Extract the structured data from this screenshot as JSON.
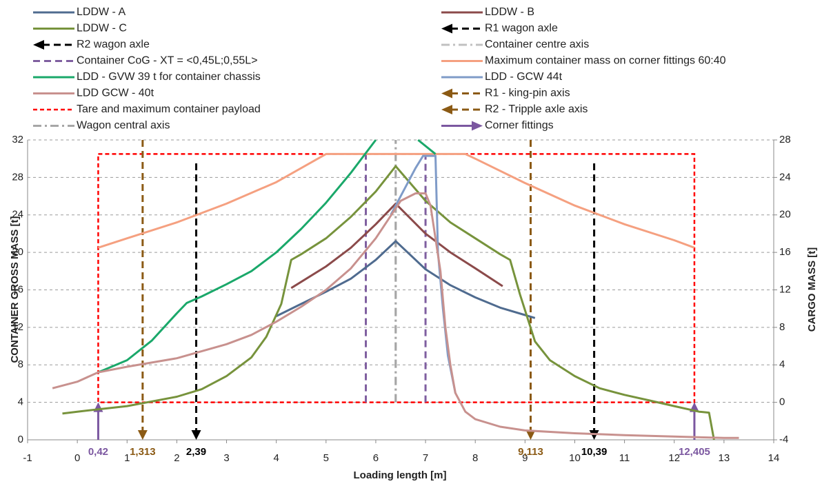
{
  "chart_data": {
    "type": "line",
    "x_label": "Loading length [m]",
    "y_label": "CONTAINER GROSS MASS [t]",
    "y2_label": "CARGO MASS [t]",
    "xlim": [
      -1,
      14
    ],
    "xticks": [
      -1,
      0,
      1,
      2,
      3,
      4,
      5,
      6,
      7,
      8,
      9,
      10,
      11,
      12,
      13,
      14
    ],
    "ylim": [
      0,
      32
    ],
    "yticks": [
      0,
      4,
      8,
      12,
      16,
      20,
      24,
      28,
      32
    ],
    "y2lim": [
      -4,
      28
    ],
    "y2ticks": [
      -4,
      0,
      4,
      8,
      12,
      16,
      20,
      24,
      28
    ],
    "grid": true,
    "series": [
      {
        "name": "LDDW - A",
        "color": "#4f6b8f",
        "style": "solid",
        "x": [
          4.0,
          4.5,
          5.0,
          5.5,
          6.0,
          6.4,
          7.0,
          7.5,
          8.0,
          8.5,
          9.2
        ],
        "values": [
          13.2,
          14.5,
          15.8,
          17.2,
          19.2,
          21.2,
          18.2,
          16.5,
          15.2,
          14.1,
          13.0
        ]
      },
      {
        "name": "LDDW - B",
        "color": "#8b4a4a",
        "style": "solid",
        "x": [
          4.3,
          5.0,
          5.5,
          6.0,
          6.4,
          7.0,
          7.5,
          8.0,
          8.55
        ],
        "values": [
          16.2,
          18.5,
          20.5,
          23.0,
          25.2,
          22.0,
          20.0,
          18.3,
          16.4
        ]
      },
      {
        "name": "LDDW - C",
        "color": "#77933c",
        "style": "solid",
        "x": [
          -0.3,
          0,
          0.5,
          1,
          1.5,
          2,
          2.5,
          3,
          3.5,
          3.8,
          4.1,
          4.3,
          4.5,
          5,
          5.5,
          6,
          6.4,
          7,
          7.5,
          8,
          8.5,
          8.7,
          8.9,
          9.2,
          9.5,
          10,
          10.5,
          11,
          11.5,
          12,
          12.5,
          12.7,
          12.8
        ],
        "values": [
          2.8,
          3.0,
          3.3,
          3.6,
          4.1,
          4.6,
          5.4,
          6.8,
          8.8,
          11.0,
          14.5,
          19.2,
          19.8,
          21.5,
          23.8,
          26.5,
          29.2,
          25.5,
          23.2,
          21.5,
          19.8,
          19.2,
          15.5,
          10.5,
          8.5,
          6.8,
          5.5,
          4.8,
          4.2,
          3.6,
          3.0,
          2.9,
          0
        ]
      },
      {
        "name": "R1 wagon axle",
        "color": "#000000",
        "style": "vline",
        "dash": "dash",
        "arrow": "end",
        "x": [
          10.39
        ],
        "x_labels": [
          "10,39"
        ],
        "from": 29.5,
        "to": 0
      },
      {
        "name": "R2 wagon axle",
        "color": "#000000",
        "style": "vline",
        "dash": "dash",
        "arrow": "end",
        "x": [
          2.39
        ],
        "x_labels": [
          "2,39"
        ],
        "from": 29.5,
        "to": 0
      },
      {
        "name": "Container centre axis",
        "color": "#c0c0c0",
        "style": "vline",
        "dash": "dashdot",
        "x": [
          6.4
        ],
        "from": 4,
        "to": 32
      },
      {
        "name": "Container CoG - XT = <0,45L;0,55L>",
        "color": "#7f5fa0",
        "style": "vline",
        "dash": "dash",
        "x": [
          5.8,
          7.0
        ],
        "from": 4,
        "to": 30.5
      },
      {
        "name": "Maximum container mass on corner fittings 60:40",
        "color": "#f5a080",
        "style": "solid",
        "x": [
          0.42,
          1,
          2,
          3,
          4,
          5,
          6,
          7,
          7.8,
          8,
          9,
          10,
          11,
          12,
          12.405
        ],
        "values": [
          20.5,
          21.5,
          23.2,
          25.2,
          27.5,
          30.5,
          30.5,
          30.5,
          30.5,
          30.0,
          27.4,
          25.0,
          23.0,
          21.3,
          20.5
        ]
      },
      {
        "name": "LDD - GVW 39 t for container chassis",
        "color": "#1aa86a",
        "style": "solid",
        "x": [
          0.42,
          1,
          1.5,
          2,
          2.2,
          2.5,
          3,
          3.5,
          4,
          4.5,
          5,
          5.5,
          5.8,
          6.0,
          6.4,
          6.85,
          7.2
        ],
        "values": [
          7.2,
          8.5,
          10.6,
          13.5,
          14.6,
          15.3,
          16.6,
          18.0,
          20.0,
          22.5,
          25.3,
          28.5,
          30.6,
          32,
          null,
          32,
          30.5
        ]
      },
      {
        "name": "LDD - GCW 44t",
        "color": "#7f9bc8",
        "style": "solid",
        "x": [
          6.3,
          6.8,
          6.95,
          7.2,
          7.25,
          7.35,
          7.45,
          7.6
        ],
        "values": [
          24.0,
          29.0,
          30.3,
          30.3,
          20.0,
          14.0,
          9.0,
          5.0
        ]
      },
      {
        "name": "LDD GCW - 40t",
        "color": "#c8918e",
        "style": "solid",
        "x": [
          -0.5,
          0,
          0.42,
          1,
          2,
          3,
          3.5,
          4,
          4.5,
          5,
          5.5,
          6,
          6.5,
          6.8,
          7.0,
          7.1,
          7.3,
          7.4,
          7.5,
          7.6,
          7.8,
          8,
          8.5,
          9,
          10,
          11,
          12,
          13,
          13.3
        ],
        "values": [
          5.5,
          6.2,
          7.2,
          7.8,
          8.7,
          10.2,
          11.2,
          12.6,
          14.2,
          16.0,
          18.3,
          21.5,
          25.5,
          26.3,
          26.3,
          25.0,
          18.0,
          12.0,
          8.0,
          5.0,
          3.0,
          2.2,
          1.4,
          1.0,
          0.7,
          0.5,
          0.35,
          0.2,
          0.2
        ]
      },
      {
        "name": "R1 - king-pin axis",
        "color": "#8b5a14",
        "style": "vline",
        "dash": "dash",
        "arrow": "end",
        "x": [
          1.313
        ],
        "x_labels": [
          "1,313"
        ],
        "from": 32,
        "to": 0
      },
      {
        "name": "Tare and maximum container payload",
        "color": "#ff0000",
        "style": "rect",
        "dash": "short",
        "x": [
          0.42,
          12.405
        ],
        "from": 4,
        "to": 30.5
      },
      {
        "name": "R2 - Tripple axle axis",
        "color": "#8b5a14",
        "style": "vline",
        "dash": "dash",
        "arrow": "end",
        "x": [
          9.113
        ],
        "x_labels": [
          "9,113"
        ],
        "from": 32,
        "to": 0
      },
      {
        "name": "Wagon central axis",
        "color": "#a6a6a6",
        "style": "vline",
        "dash": "dashdot",
        "x": [
          6.4
        ],
        "from": 4,
        "to": 32
      },
      {
        "name": "Corner fittings",
        "color": "#7b57a0",
        "style": "vline",
        "dash": "solid",
        "arrow": "end",
        "x": [
          0.42,
          12.405
        ],
        "x_labels": [
          "0,42",
          "12,405"
        ],
        "from": 0,
        "to": 4
      }
    ]
  }
}
